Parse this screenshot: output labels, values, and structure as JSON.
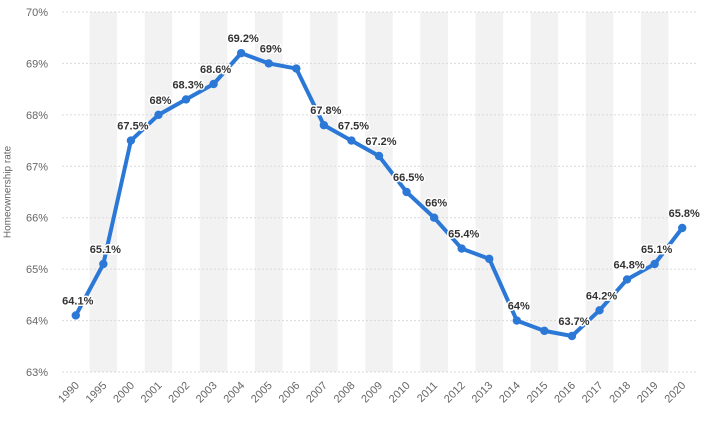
{
  "chart_data": {
    "type": "line",
    "title": "",
    "xlabel": "",
    "ylabel": "Homeownership rate",
    "ylim": [
      63,
      70
    ],
    "y_ticks": [
      "63%",
      "64%",
      "65%",
      "66%",
      "67%",
      "68%",
      "69%",
      "70%"
    ],
    "grid": true,
    "legend": "none",
    "colors": {
      "line": "#2b78d6",
      "grid": "#d9d9d9",
      "band": "#f2f2f2"
    },
    "categories": [
      "1990",
      "1995",
      "2000",
      "2001",
      "2002",
      "2003",
      "2004",
      "2005",
      "2006",
      "2007",
      "2008",
      "2009",
      "2010",
      "2011",
      "2012",
      "2013",
      "2014",
      "2015",
      "2016",
      "2017",
      "2018",
      "2019",
      "2020"
    ],
    "series": [
      {
        "values": [
          64.1,
          65.1,
          67.5,
          68,
          68.3,
          68.6,
          69.2,
          69,
          68.9,
          67.8,
          67.5,
          67.2,
          66.5,
          66,
          65.4,
          65.2,
          64,
          63.8,
          63.7,
          64.2,
          64.8,
          65.1,
          65.8
        ],
        "labels": [
          "64.1%",
          "65.1%",
          "67.5%",
          "68%",
          "68.3%",
          "68.6%",
          "69.2%",
          "69%",
          "",
          "67.8%",
          "67.5%",
          "67.2%",
          "66.5%",
          "66%",
          "65.4%",
          "",
          "64%",
          "",
          "63.7%",
          "64.2%",
          "64.8%",
          "65.1%",
          "65.8%"
        ]
      }
    ]
  }
}
